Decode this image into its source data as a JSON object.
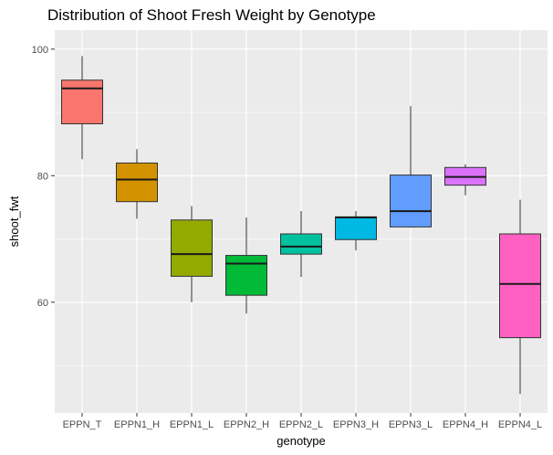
{
  "chart_data": {
    "type": "boxplot",
    "title": "Distribution of Shoot Fresh Weight by Genotype",
    "xlabel": "genotype",
    "ylabel": "shoot_fwt",
    "ylim": [
      42.5,
      103
    ],
    "yticks": [
      60,
      80,
      100
    ],
    "grid": true,
    "categories": [
      "EPPN_T",
      "EPPN1_H",
      "EPPN1_L",
      "EPPN2_H",
      "EPPN2_L",
      "EPPN3_H",
      "EPPN3_L",
      "EPPN4_H",
      "EPPN4_L"
    ],
    "series": [
      {
        "min": 82.6,
        "q1": 88.2,
        "median": 93.8,
        "q3": 95.1,
        "max": 98.9
      },
      {
        "min": 73.2,
        "q1": 75.9,
        "median": 79.4,
        "q3": 82.0,
        "max": 84.2
      },
      {
        "min": 60.0,
        "q1": 64.1,
        "median": 67.6,
        "q3": 73.0,
        "max": 75.2
      },
      {
        "min": 58.2,
        "q1": 61.1,
        "median": 66.1,
        "q3": 67.4,
        "max": 73.4
      },
      {
        "min": 64.0,
        "q1": 67.6,
        "median": 68.8,
        "q3": 70.8,
        "max": 74.4
      },
      {
        "min": 68.2,
        "q1": 69.9,
        "median": 73.4,
        "q3": 73.5,
        "max": 74.4
      },
      {
        "min": 71.8,
        "q1": 71.9,
        "median": 74.4,
        "q3": 80.1,
        "max": 91.0
      },
      {
        "min": 76.9,
        "q1": 78.5,
        "median": 79.8,
        "q3": 81.3,
        "max": 81.8
      },
      {
        "min": 45.5,
        "q1": 54.4,
        "median": 62.9,
        "q3": 70.8,
        "max": 76.2
      }
    ],
    "colors": [
      "#F8766D",
      "#D39200",
      "#93AA00",
      "#00BA38",
      "#00C19F",
      "#00B9E3",
      "#619CFF",
      "#DB72FB",
      "#FF61C3"
    ],
    "panel_background": "#EBEBEB",
    "grid_color": "#FFFFFF"
  }
}
